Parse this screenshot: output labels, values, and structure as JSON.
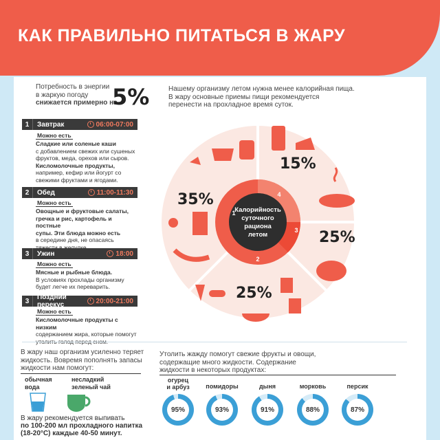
{
  "title": "КАК ПРАВИЛЬНО ПИТАТЬСЯ В ЖАРУ",
  "energy": {
    "text1": "Потребность в энергии",
    "text2": "в жаркую погоду",
    "text3": "снижается примерно на",
    "percent": "5%"
  },
  "intro": {
    "line1": "Нашему организму летом нужна менее калорийная пища.",
    "line2": "В жару основные приемы пищи рекомендуется",
    "line3": "перенести на прохладное время суток."
  },
  "can_eat_label": "Можно есть",
  "meals": [
    {
      "num": "1",
      "name": "Завтрак",
      "time": "06:00-07:00",
      "lines": [
        "Сладкие или соленые каши",
        "с добавлением свежих или сушеных",
        "фруктов, меда, орехов или сыров.",
        "Кисломолочные продукты,",
        "например, кефир или йогурт со",
        "свежими фруктами и ягодами."
      ]
    },
    {
      "num": "2",
      "name": "Обед",
      "time": "11:00-11:30",
      "lines": [
        "Овощные и фруктовые салаты,",
        "гречка и рис, картофель и постные",
        "супы. Эти блюда можно есть",
        "в середине дня, не опасаясь",
        "тяжести в желудке."
      ]
    },
    {
      "num": "3",
      "name": "Ужин",
      "time": "18:00",
      "lines": [
        "Мясные и рыбные блюда.",
        "В условиях прохлады организму",
        "будет легче их переварить."
      ]
    },
    {
      "num": "3",
      "name": "Поздний перекус",
      "time": "20:00-21:00",
      "lines": [
        "Кисломолочные продукты с низким",
        "содержанием жира, которые помогут",
        "утолить голод перед сном."
      ]
    }
  ],
  "pie": {
    "center": [
      "Калорийность",
      "суточного",
      "рациона",
      "летом"
    ],
    "slice_numbers": [
      "1",
      "2",
      "3",
      "4"
    ],
    "labels": [
      "15%",
      "25%",
      "25%",
      "35%"
    ],
    "colors": {
      "accent": "#ef5d4a",
      "dark": "#3a3a3a",
      "light": "#fbe3dc"
    }
  },
  "water": {
    "line1": "В жару наш организм усиленно теряет",
    "line2": "жидкость. Вовремя пополнять запасы",
    "line3": "жидкости нам помогут:",
    "drink1": [
      "обычная",
      "вода"
    ],
    "drink2": [
      "несладкий",
      "зеленый чай"
    ],
    "tip1": "В жару рекомендуется выпивать",
    "tip2": "по 100-200 мл прохладного напитка",
    "tip3": "(18-20°С) каждые 40-50 минут."
  },
  "fruits": {
    "line1": "Утолить жажду помогут свежие фрукты и овощи,",
    "line2": "содержащие много жидкости.  Содержание",
    "line3": "жидкости в некоторых продуктах:",
    "items": [
      {
        "name1": "огурец",
        "name2": "и арбуз",
        "value": "95%",
        "fraction": 0.95
      },
      {
        "name1": "помидоры",
        "name2": "",
        "value": "93%",
        "fraction": 0.93
      },
      {
        "name1": "дыня",
        "name2": "",
        "value": "91%",
        "fraction": 0.91
      },
      {
        "name1": "морковь",
        "name2": "",
        "value": "88%",
        "fraction": 0.88
      },
      {
        "name1": "персик",
        "name2": "",
        "value": "87%",
        "fraction": 0.87
      }
    ]
  },
  "fruit_ring_color": "#3b9fd6",
  "fruit_ring_bg": "#d5ebf7"
}
